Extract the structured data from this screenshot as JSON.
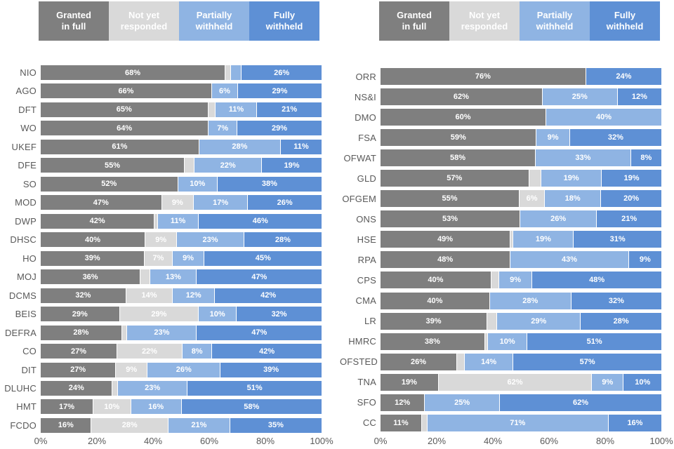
{
  "colors": {
    "granted": "#7f7f7f",
    "not_yet": "#d9d9d9",
    "partially": "#8fb4e3",
    "fully": "#5e90d5",
    "bar_label_text": "#ffffff",
    "axis_text": "#595959"
  },
  "label_min_value": 6,
  "legend": {
    "items": [
      {
        "key": "granted",
        "label": "Granted\nin full"
      },
      {
        "key": "not_yet",
        "label": "Not yet\nresponded"
      },
      {
        "key": "partially",
        "label": "Partially\nwithheld"
      },
      {
        "key": "fully",
        "label": "Fully\nwithheld"
      }
    ]
  },
  "chart_data": [
    {
      "type": "bar",
      "orientation": "horizontal",
      "stacked": true,
      "title": "",
      "xlabel": "",
      "ylabel": "",
      "xlim": [
        0,
        100
      ],
      "x_ticks": [
        "0%",
        "20%",
        "40%",
        "60%",
        "80%",
        "100%"
      ],
      "x_tick_values": [
        0,
        20,
        40,
        60,
        80,
        100
      ],
      "categories": [
        "NIO",
        "AGO",
        "DFT",
        "WO",
        "UKEF",
        "DFE",
        "SO",
        "MOD",
        "DWP",
        "DHSC",
        "HO",
        "MOJ",
        "DCMS",
        "BEIS",
        "DEFRA",
        "CO",
        "DIT",
        "DLUHC",
        "HMT",
        "FCDO"
      ],
      "series": [
        {
          "key": "granted",
          "name": "Granted in full",
          "values": [
            68,
            66,
            65,
            64,
            61,
            55,
            52,
            47,
            42,
            40,
            39,
            36,
            32,
            29,
            28,
            27,
            27,
            24,
            17,
            16
          ]
        },
        {
          "key": "not_yet",
          "name": "Not yet responded",
          "values": [
            2,
            0,
            3,
            0,
            0,
            4,
            0,
            9,
            1,
            9,
            7,
            4,
            14,
            29,
            2,
            22,
            9,
            2,
            10,
            28
          ]
        },
        {
          "key": "partially",
          "name": "Partially withheld",
          "values": [
            4,
            6,
            11,
            7,
            28,
            22,
            10,
            17,
            11,
            23,
            9,
            13,
            12,
            10,
            23,
            8,
            26,
            23,
            16,
            21
          ]
        },
        {
          "key": "fully",
          "name": "Fully withheld",
          "values": [
            26,
            29,
            21,
            29,
            11,
            19,
            38,
            26,
            46,
            28,
            45,
            47,
            42,
            32,
            47,
            42,
            39,
            51,
            58,
            35
          ]
        }
      ]
    },
    {
      "type": "bar",
      "orientation": "horizontal",
      "stacked": true,
      "title": "",
      "xlabel": "",
      "ylabel": "",
      "xlim": [
        0,
        100
      ],
      "x_ticks": [
        "0%",
        "20%",
        "40%",
        "60%",
        "80%",
        "100%"
      ],
      "x_tick_values": [
        0,
        20,
        40,
        60,
        80,
        100
      ],
      "categories": [
        "ORR",
        "NS&I",
        "DMO",
        "FSA",
        "OFWAT",
        "GLD",
        "OFGEM",
        "ONS",
        "HSE",
        "RPA",
        "CPS",
        "CMA",
        "LR",
        "HMRC",
        "OFSTED",
        "TNA",
        "SFO",
        "CC"
      ],
      "series": [
        {
          "key": "granted",
          "name": "Granted in full",
          "values": [
            76,
            62,
            60,
            59,
            58,
            57,
            55,
            53,
            49,
            48,
            40,
            40,
            39,
            38,
            26,
            19,
            12,
            11
          ]
        },
        {
          "key": "not_yet",
          "name": "Not yet responded",
          "values": [
            0,
            0,
            0,
            0,
            0,
            5,
            6,
            0,
            1,
            0,
            3,
            0,
            4,
            1,
            3,
            62,
            0,
            2
          ]
        },
        {
          "key": "partially",
          "name": "Partially withheld",
          "values": [
            0,
            25,
            40,
            9,
            33,
            19,
            18,
            26,
            19,
            43,
            9,
            28,
            29,
            10,
            14,
            9,
            25,
            71
          ]
        },
        {
          "key": "fully",
          "name": "Fully withheld",
          "values": [
            24,
            12,
            0,
            32,
            8,
            19,
            20,
            21,
            31,
            9,
            48,
            32,
            28,
            51,
            57,
            10,
            62,
            16
          ]
        }
      ]
    }
  ]
}
